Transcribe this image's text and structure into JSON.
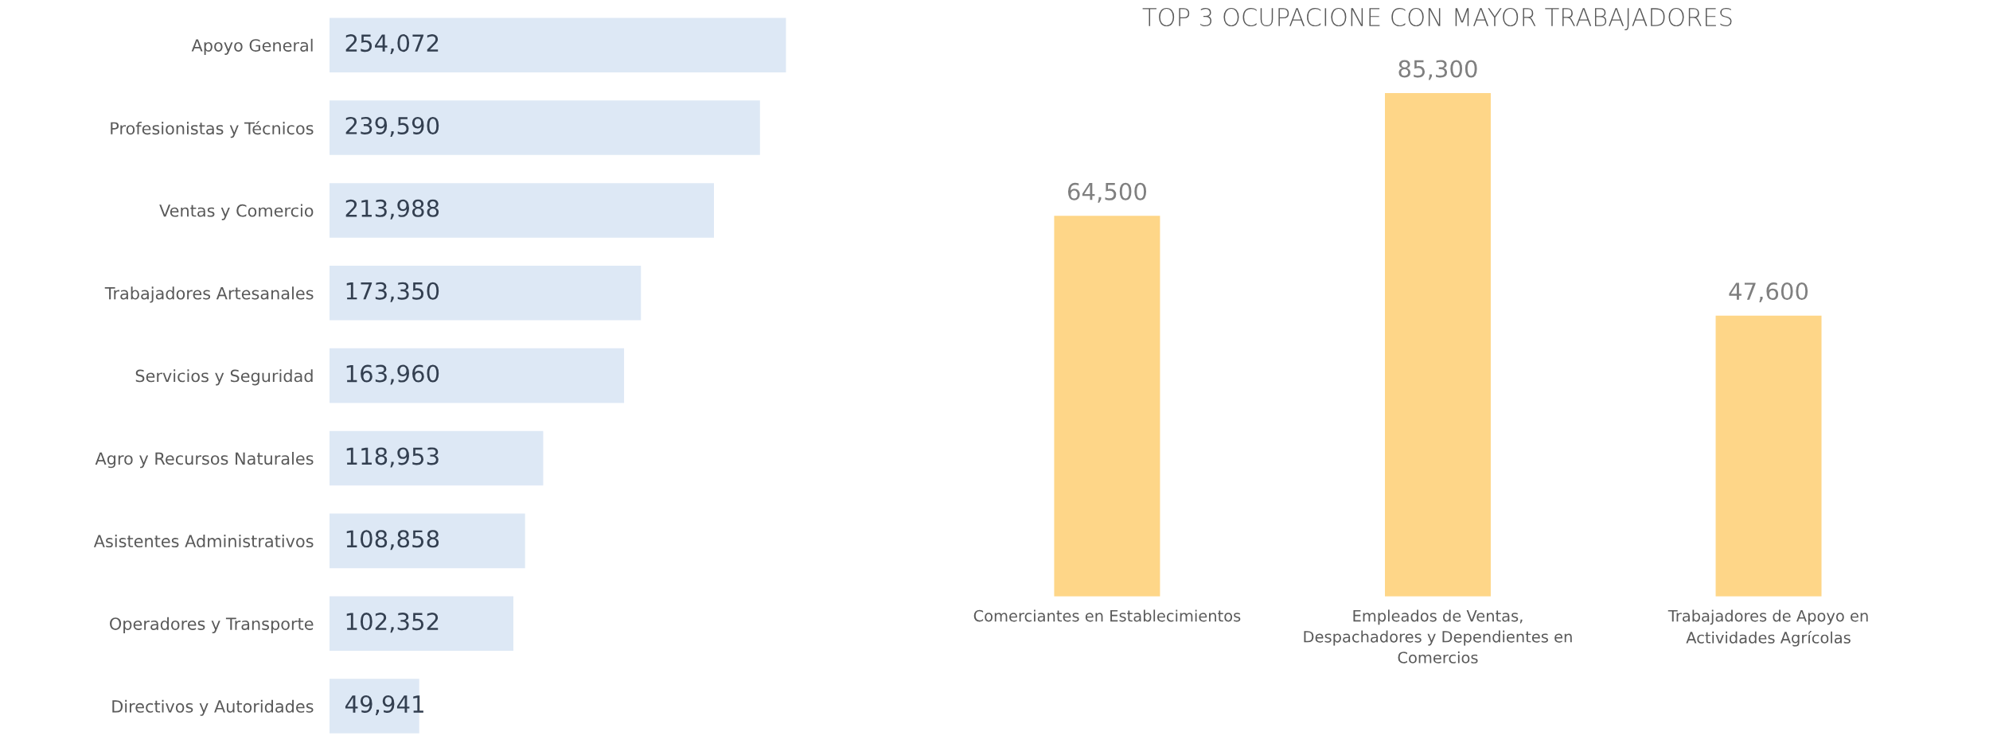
{
  "chart_data": [
    {
      "type": "bar",
      "orientation": "horizontal",
      "categories": [
        "Apoyo General",
        "Profesionistas y Técnicos",
        "Ventas y Comercio",
        "Trabajadores Artesanales",
        "Servicios y Seguridad",
        "Agro y Recursos Naturales",
        "Asistentes Administrativos",
        "Operadores y Transporte",
        "Directivos y Autoridades"
      ],
      "values": [
        254072,
        239590,
        213988,
        173350,
        163960,
        118953,
        108858,
        102352,
        49941
      ],
      "color": "#dde8f5",
      "data_labels": true,
      "value_labels": [
        "254,072",
        "239,590",
        "213,988",
        "173,350",
        "163,960",
        "118,953",
        "108,858",
        "102,352",
        "49,941"
      ],
      "tick_labels": "y",
      "grid": false,
      "legend": false
    },
    {
      "type": "bar",
      "title": "TOP 3 OCUPACIONE CON MAYOR TRABAJADORES",
      "categories": [
        "Comerciantes en Establecimientos",
        "Empleados de Ventas,\nDespachadores y Dependientes en\nComercios",
        "Trabajadores de Apoyo en\nActividades Agrícolas"
      ],
      "values": [
        64500,
        85300,
        47600
      ],
      "color": "#fed688",
      "data_labels": true,
      "value_labels": [
        "64,500",
        "85,300",
        "47,600"
      ],
      "tick_labels": "x",
      "grid": false,
      "legend": false
    }
  ]
}
